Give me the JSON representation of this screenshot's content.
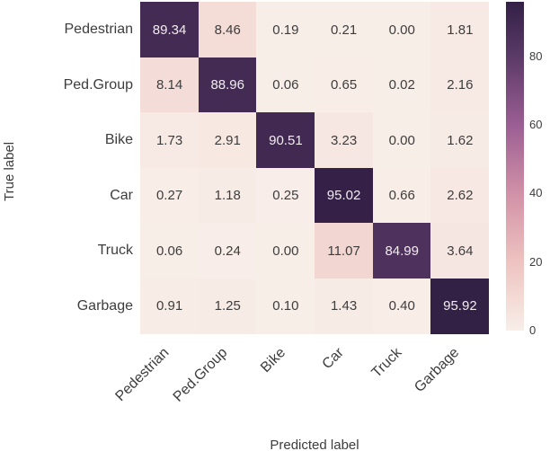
{
  "chart_data": {
    "type": "heatmap",
    "title": "",
    "xlabel": "Predicted label",
    "ylabel": "True label",
    "categories": [
      "Pedestrian",
      "Ped.Group",
      "Bike",
      "Car",
      "Truck",
      "Garbage"
    ],
    "matrix": [
      [
        89.34,
        8.46,
        0.19,
        0.21,
        0.0,
        1.81
      ],
      [
        8.14,
        88.96,
        0.06,
        0.65,
        0.02,
        2.16
      ],
      [
        1.73,
        2.91,
        90.51,
        3.23,
        0.0,
        1.62
      ],
      [
        0.27,
        1.18,
        0.25,
        95.02,
        0.66,
        2.62
      ],
      [
        0.06,
        0.24,
        0.0,
        11.07,
        84.99,
        3.64
      ],
      [
        0.91,
        1.25,
        0.1,
        1.43,
        0.4,
        95.92
      ]
    ],
    "annotation_decimals": 2,
    "vmin": 0,
    "vmax": 95.92,
    "colorbar_ticks": [
      0,
      20,
      40,
      60,
      80
    ],
    "colorbar_position": "right",
    "x_tick_rotation": 45,
    "grid": false,
    "colormap_stops": [
      {
        "value": 0,
        "color": "#f8eee8"
      },
      {
        "value": 20,
        "color": "#eec3c0"
      },
      {
        "value": 40,
        "color": "#d191a7"
      },
      {
        "value": 60,
        "color": "#9b5e93"
      },
      {
        "value": 80,
        "color": "#5b3a68"
      },
      {
        "value": 95.92,
        "color": "#332045"
      }
    ],
    "light_text_color": "#f2ecf0",
    "dark_text_color": "#3d3d3d",
    "light_text_threshold": 50
  }
}
